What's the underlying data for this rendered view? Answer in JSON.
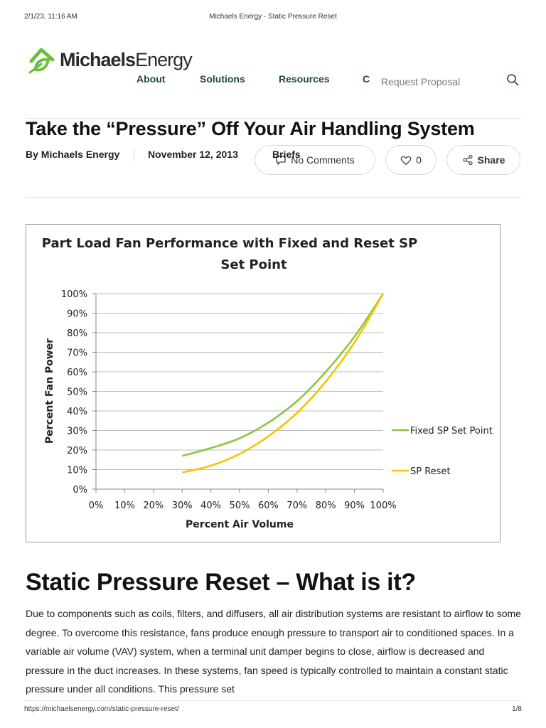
{
  "print_header": {
    "date": "2/1/23, 11:16 AM",
    "title": "Michaels Energy - Static Pressure Reset"
  },
  "logo": {
    "bold": "Michaels",
    "light": "Energy"
  },
  "nav": {
    "items": [
      "About",
      "Solutions",
      "Resources"
    ],
    "truncated_item": "C",
    "request_proposal": "Request Proposal",
    "icon": "search-icon"
  },
  "article": {
    "title": "Take the “Pressure” Off Your Air Handling System",
    "author": "By Michaels Energy",
    "date": "November 12, 2013",
    "category": "Briefs",
    "comments_label": "No Comments",
    "likes": "0",
    "share_label": "Share"
  },
  "chart_data": {
    "type": "line",
    "title": "Part Load Fan Performance with Fixed and Reset SP",
    "title_line2": "Set Point",
    "xlabel": "Percent Air Volume",
    "ylabel": "Percent Fan Power",
    "x_ticks": [
      "0%",
      "10%",
      "20%",
      "30%",
      "40%",
      "50%",
      "60%",
      "70%",
      "80%",
      "90%",
      "100%"
    ],
    "y_ticks": [
      "0%",
      "10%",
      "20%",
      "30%",
      "40%",
      "50%",
      "60%",
      "70%",
      "80%",
      "90%",
      "100%"
    ],
    "xlim": [
      0,
      100
    ],
    "ylim": [
      0,
      100
    ],
    "grid": "horizontal",
    "legend": "right",
    "x": [
      30,
      40,
      50,
      60,
      70,
      80,
      90,
      100
    ],
    "series": [
      {
        "name": "Fixed SP Set Point",
        "color": "#8dc63f",
        "values": [
          17,
          21,
          26,
          34,
          45,
          60,
          78,
          100
        ]
      },
      {
        "name": "SP Reset",
        "color": "#f5c400",
        "values": [
          8.5,
          12,
          18,
          27,
          39,
          55,
          75,
          100
        ]
      }
    ]
  },
  "section": {
    "heading": "Static Pressure Reset – What is it?",
    "paragraph": "Due to components such as coils, filters, and diffusers, all air distribution systems are resistant to airflow to some degree.  To overcome this resistance, fans produce enough pressure to transport air to conditioned spaces. In a variable air volume (VAV) system, when a terminal unit damper begins to close, airflow is decreased and pressure in the duct increases. In these systems, fan speed is typically controlled to maintain a constant static pressure under all conditions.  This pressure set"
  },
  "print_footer": {
    "url": "https://michaelsenergy.com/static-pressure-reset/",
    "page": "1/8"
  },
  "colors": {
    "brand_green": "#6cbf3c",
    "nav_text": "#1f4d2b"
  }
}
